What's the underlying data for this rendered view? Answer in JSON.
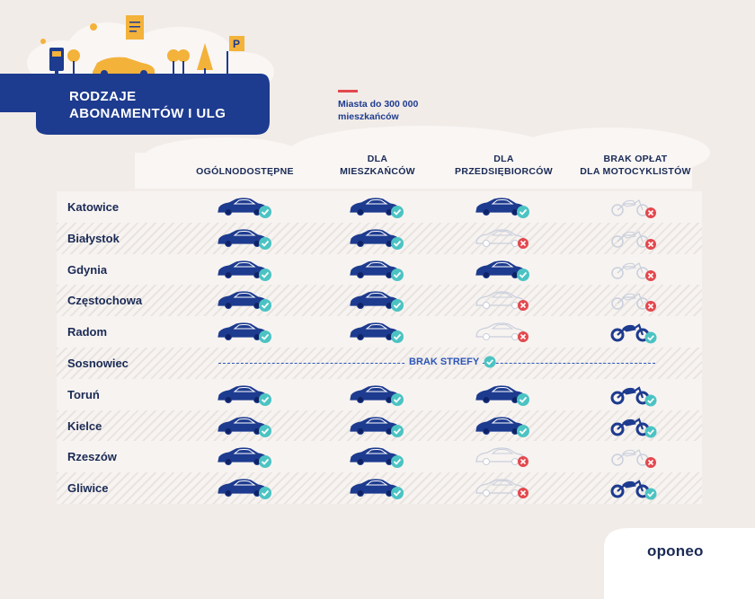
{
  "title": {
    "line1": "RODZAJE",
    "line2": "ABONAMENTÓW I ULG"
  },
  "legend": {
    "text": "Miasta do 300 000 mieszkańców",
    "marker_color": "#e3484e"
  },
  "columns": [
    {
      "line1": "",
      "line2": "OGÓLNODOSTĘPNE"
    },
    {
      "line1": "DLA",
      "line2": "MIESZKAŃCÓW"
    },
    {
      "line1": "DLA",
      "line2": "PRZEDSIĘBIORCÓW"
    },
    {
      "line1": "BRAK OPŁAT",
      "line2": "DLA MOTOCYKLISTÓW"
    }
  ],
  "rows": [
    {
      "city": "Katowice",
      "values": [
        true,
        true,
        true,
        false
      ]
    },
    {
      "city": "Białystok",
      "values": [
        true,
        true,
        false,
        false
      ]
    },
    {
      "city": "Gdynia",
      "values": [
        true,
        true,
        true,
        false
      ]
    },
    {
      "city": "Częstochowa",
      "values": [
        true,
        true,
        false,
        false
      ]
    },
    {
      "city": "Radom",
      "values": [
        true,
        true,
        false,
        true
      ]
    },
    {
      "city": "Sosnowiec",
      "no_zone": true,
      "no_zone_label": "BRAK STREFY"
    },
    {
      "city": "Toruń",
      "values": [
        true,
        true,
        true,
        true
      ]
    },
    {
      "city": "Kielce",
      "values": [
        true,
        true,
        true,
        true
      ]
    },
    {
      "city": "Rzeszów",
      "values": [
        true,
        true,
        false,
        false
      ]
    },
    {
      "city": "Gliwice",
      "values": [
        true,
        true,
        false,
        true
      ]
    }
  ],
  "brand": {
    "logo": "oponeo"
  },
  "colors": {
    "primary": "#1d3b8f",
    "accent_blue": "#2c56b8",
    "check": "#4cc3c3",
    "cross": "#e3484e",
    "inactive": "#c9cfdc",
    "background": "#f2ece8"
  },
  "icons": {
    "car": "car-icon",
    "motorcycle": "motorcycle-icon",
    "check": "check-badge-icon",
    "cross": "cross-badge-icon"
  }
}
